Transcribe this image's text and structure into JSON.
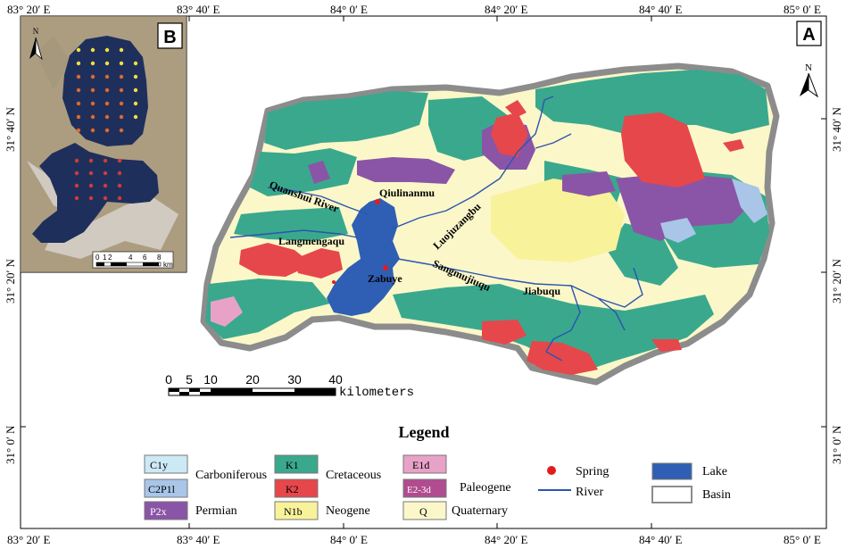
{
  "coords": {
    "top": [
      "83° 20′ E",
      "83° 40′ E",
      "84° 0′ E",
      "84° 20′ E",
      "84° 40′ E",
      "85° 0′ E"
    ],
    "bottom": [
      "83° 20′ E",
      "83° 40′ E",
      "84° 0′ E",
      "84° 20′ E",
      "84° 40′ E",
      "85° 0′ E"
    ],
    "left": [
      "31° 40′ N",
      "31° 20′ N",
      "31° 0′ N"
    ],
    "right": [
      "31° 40′ N",
      "31° 20′ N",
      "31° 0′ N"
    ]
  },
  "panel_a": {
    "label": "A",
    "north": "N"
  },
  "panel_b": {
    "label": "B",
    "north": "N",
    "scale_ticks": [
      "0",
      "1",
      "2",
      "4",
      "6",
      "8"
    ],
    "scale_unit": "km"
  },
  "place_names": {
    "quanshui_river": "Quanshui River",
    "qiulinanmu": "Qiulinanmu",
    "luojuzangbu": "Luojuzangbu",
    "langmengaqu": "Langmengaqu",
    "zabuye": "Zabuye",
    "sangmujiuqu": "Sangmujiuqu",
    "jiabuqu": "Jiabuqu"
  },
  "scale_bar": {
    "ticks": [
      "0",
      "5",
      "10",
      "20",
      "30",
      "40"
    ],
    "unit": "kilometers"
  },
  "legend": {
    "title": "Legend",
    "codes": {
      "c1y": "C1y",
      "c2p1l": "C2P1l",
      "p2x": "P2x",
      "k1": "K1",
      "k2": "K2",
      "n1b": "N1b",
      "e1d": "E1d",
      "e23d": "E2-3d",
      "q": "Q"
    },
    "groups": {
      "carboniferous": "Carboniferous",
      "permian": "Permian",
      "cretaceous": "Cretaceous",
      "neogene": "Neogene",
      "paleogene": "Paleogene",
      "quaternary": "Quaternary"
    },
    "symbols": {
      "spring": "Spring",
      "river": "River",
      "lake": "Lake",
      "basin": "Basin"
    }
  },
  "colors": {
    "c1y": "#cde9f6",
    "c2p1l": "#a9c6e8",
    "p2x": "#8a55a6",
    "k1": "#3aa88d",
    "k2": "#e6474b",
    "n1b": "#f8f29a",
    "e1d": "#e8a2c8",
    "e23d": "#b04c8f",
    "q": "#fbf7c9",
    "lake": "#2f5fb4",
    "river": "#2a55b0",
    "spring": "#e51b1b",
    "basin_border": "#8c8c8c"
  }
}
